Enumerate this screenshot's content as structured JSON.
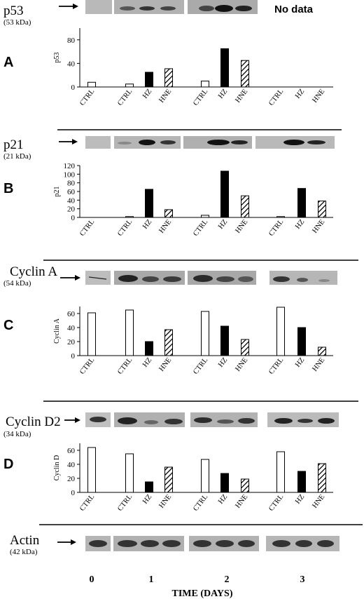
{
  "categories": [
    "CTRL",
    "CTRL",
    "HZ",
    "HNE",
    "CTRL",
    "HZ",
    "HNE",
    "CTRL",
    "HZ",
    "HNE"
  ],
  "panels": [
    {
      "letter": "A",
      "protein": "p53",
      "kda": "(53 kDa)",
      "ylabel": "p53",
      "ticks": [
        "0",
        "40",
        "80"
      ],
      "note": "No data"
    },
    {
      "letter": "B",
      "protein": "p21",
      "kda": "(21 kDa)",
      "ylabel": "p21",
      "ticks": [
        "0",
        "20",
        "40",
        "60",
        "80",
        "100",
        "120"
      ]
    },
    {
      "letter": "C",
      "protein": "Cyclin A",
      "kda": "(54 kDa)",
      "ylabel": "Cyclin A",
      "ticks": [
        "0",
        "20",
        "40",
        "60"
      ]
    },
    {
      "letter": "D",
      "protein": "Cyclin D2",
      "kda": "(34 kDa)",
      "ylabel": "Cyclin D",
      "ticks": [
        "0",
        "20",
        "40",
        "60"
      ]
    }
  ],
  "actin": {
    "protein": "Actin",
    "kda": "(42 kDa)"
  },
  "time_axis": {
    "ticks": [
      "0",
      "1",
      "2",
      "3"
    ],
    "label": "TIME (DAYS)"
  },
  "chart_data": [
    {
      "type": "bar",
      "panel": "A",
      "ylabel": "p53",
      "ylim": [
        0,
        100
      ],
      "categories": [
        "CTRL",
        "CTRL",
        "HZ",
        "HNE",
        "CTRL",
        "HZ",
        "HNE",
        "CTRL",
        "HZ",
        "HNE"
      ],
      "days": [
        0,
        1,
        1,
        1,
        2,
        2,
        2,
        3,
        3,
        3
      ],
      "values": [
        8,
        5,
        25,
        31,
        10,
        65,
        45,
        null,
        null,
        null
      ]
    },
    {
      "type": "bar",
      "panel": "B",
      "ylabel": "p21",
      "ylim": [
        0,
        120
      ],
      "categories": [
        "CTRL",
        "CTRL",
        "HZ",
        "HNE",
        "CTRL",
        "HZ",
        "HNE",
        "CTRL",
        "HZ",
        "HNE"
      ],
      "days": [
        0,
        1,
        1,
        1,
        2,
        2,
        2,
        3,
        3,
        3
      ],
      "values": [
        0,
        2,
        65,
        18,
        5,
        107,
        50,
        2,
        67,
        38
      ]
    },
    {
      "type": "bar",
      "panel": "C",
      "ylabel": "Cyclin A",
      "ylim": [
        0,
        70
      ],
      "categories": [
        "CTRL",
        "CTRL",
        "HZ",
        "HNE",
        "CTRL",
        "HZ",
        "HNE",
        "CTRL",
        "HZ",
        "HNE"
      ],
      "days": [
        0,
        1,
        1,
        1,
        2,
        2,
        2,
        3,
        3,
        3
      ],
      "values": [
        61,
        65,
        20,
        37,
        63,
        42,
        23,
        69,
        40,
        12
      ]
    },
    {
      "type": "bar",
      "panel": "D",
      "ylabel": "Cyclin D",
      "ylim": [
        0,
        70
      ],
      "categories": [
        "CTRL",
        "CTRL",
        "HZ",
        "HNE",
        "CTRL",
        "HZ",
        "HNE",
        "CTRL",
        "HZ",
        "HNE"
      ],
      "days": [
        0,
        1,
        1,
        1,
        2,
        2,
        2,
        3,
        3,
        3
      ],
      "values": [
        64,
        55,
        15,
        36,
        47,
        27,
        19,
        58,
        30,
        41
      ]
    }
  ]
}
